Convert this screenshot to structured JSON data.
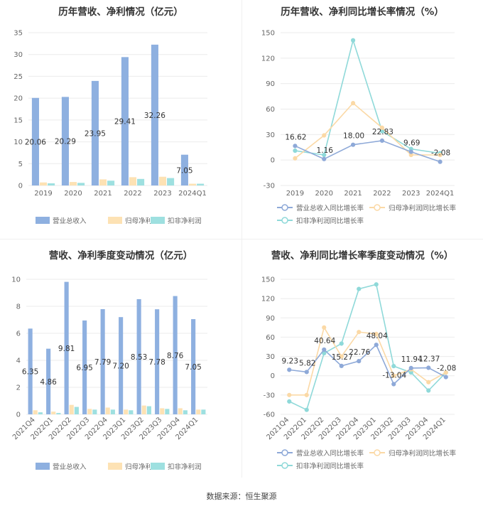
{
  "footer": "数据来源：恒生聚源",
  "colors": {
    "revenue": "#8eb0e0",
    "net_profit": "#fde2b4",
    "deducted_profit": "#9ee0e0",
    "line_revenue": "#8ea9d8",
    "line_net": "#fbd9a6",
    "line_deducted": "#8fd9d9"
  },
  "chart_data": [
    {
      "id": "annual_bar",
      "type": "bar",
      "title": "历年营收、净利情况（亿元）",
      "categories": [
        "2019",
        "2020",
        "2021",
        "2022",
        "2023",
        "2024Q1"
      ],
      "series": [
        {
          "name": "营业总收入",
          "values": [
            20.06,
            20.29,
            23.95,
            29.41,
            32.26,
            7.05
          ],
          "labels": [
            "20.06",
            "20.29",
            "23.95",
            "29.41",
            "32.26",
            "7.05"
          ]
        },
        {
          "name": "归母净利润",
          "values": [
            0.7,
            0.8,
            1.4,
            1.9,
            2.0,
            0.4
          ]
        },
        {
          "name": "扣非净利润",
          "values": [
            0.5,
            0.6,
            1.1,
            1.5,
            1.7,
            0.4
          ]
        }
      ],
      "yticks": [
        "0",
        "5",
        "10",
        "15",
        "20",
        "25",
        "30",
        "35"
      ],
      "ylim": [
        0,
        35
      ]
    },
    {
      "id": "annual_line",
      "type": "line",
      "title": "历年营收、净利同比增长率情况（%）",
      "categories": [
        "2019",
        "2020",
        "2021",
        "2022",
        "2023",
        "2024Q1"
      ],
      "series": [
        {
          "name": "营业总收入同比增长率",
          "values": [
            16.62,
            1.16,
            18.0,
            22.83,
            9.69,
            -2.08
          ],
          "labels": [
            "16.62",
            "1.16",
            "18.00",
            "22.83",
            "9.69",
            "-2.08"
          ]
        },
        {
          "name": "归母净利润同比增长率",
          "values": [
            2,
            29,
            67,
            38,
            6,
            6
          ]
        },
        {
          "name": "扣非净利润同比增长率",
          "values": [
            11,
            6,
            141,
            34,
            13,
            8
          ]
        }
      ],
      "yticks": [
        "-30",
        "0",
        "30",
        "60",
        "90",
        "120",
        "150"
      ],
      "ylim": [
        -30,
        150
      ]
    },
    {
      "id": "quarterly_bar",
      "type": "bar",
      "title": "营收、净利季度变动情况（亿元）",
      "categories": [
        "2021Q4",
        "2022Q1",
        "2022Q2",
        "2022Q3",
        "2022Q4",
        "2023Q1",
        "2023Q2",
        "2023Q3",
        "2023Q4",
        "2024Q1"
      ],
      "series": [
        {
          "name": "营业总收入",
          "values": [
            6.35,
            4.86,
            9.81,
            6.95,
            7.79,
            7.2,
            8.53,
            7.78,
            8.76,
            7.05
          ],
          "labels": [
            "6.35",
            "4.86",
            "9.81",
            "6.95",
            "7.79",
            "7.20",
            "8.53",
            "7.78",
            "8.76",
            "7.05"
          ]
        },
        {
          "name": "归母净利润",
          "values": [
            0.3,
            0.2,
            0.7,
            0.4,
            0.5,
            0.35,
            0.65,
            0.45,
            0.45,
            0.35
          ]
        },
        {
          "name": "扣非净利润",
          "values": [
            0.15,
            0.1,
            0.55,
            0.35,
            0.35,
            0.3,
            0.6,
            0.4,
            0.3,
            0.35
          ]
        }
      ],
      "yticks": [
        "0",
        "2",
        "4",
        "6",
        "8",
        "10"
      ],
      "ylim": [
        0,
        10
      ]
    },
    {
      "id": "quarterly_line",
      "type": "line",
      "title": "营收、净利同比增长率季度变动情况（%）",
      "categories": [
        "2021Q4",
        "2022Q1",
        "2022Q2",
        "2022Q3",
        "2022Q4",
        "2023Q1",
        "2023Q2",
        "2023Q3",
        "2023Q4",
        "2024Q1"
      ],
      "series": [
        {
          "name": "营业总收入同比增长率",
          "values": [
            9.23,
            5.82,
            40.64,
            15.27,
            22.76,
            48.04,
            -13.04,
            11.94,
            12.37,
            -2.08
          ],
          "labels": [
            "9.23",
            "5.82",
            "40.64",
            "15.27",
            "22.76",
            "48.04",
            "-13.04",
            "11.94",
            "12.37",
            "-2.08"
          ]
        },
        {
          "name": "归母净利润同比增长率",
          "values": [
            -30,
            -30,
            75,
            30,
            68,
            65,
            0,
            10,
            -10,
            5
          ]
        },
        {
          "name": "扣非净利润同比增长率",
          "values": [
            -40,
            -53,
            35,
            50,
            135,
            142,
            15,
            5,
            -23,
            5
          ]
        }
      ],
      "yticks": [
        "-60",
        "-30",
        "0",
        "30",
        "60",
        "90",
        "120",
        "150"
      ],
      "ylim": [
        -60,
        150
      ]
    }
  ]
}
